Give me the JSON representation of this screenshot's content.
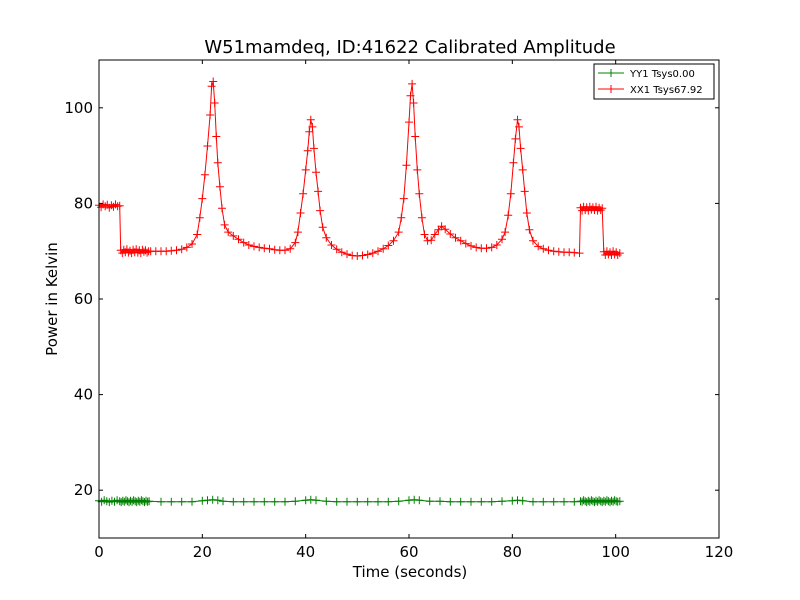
{
  "chart_data": {
    "type": "line",
    "title": "W51mamdeq, ID:41622 Calibrated Amplitude",
    "xlabel": "Time (seconds)",
    "ylabel": "Power in Kelvin",
    "xlim": [
      0,
      120
    ],
    "ylim": [
      10,
      110
    ],
    "xticks": [
      0,
      20,
      40,
      60,
      80,
      100,
      120
    ],
    "yticks": [
      20,
      40,
      60,
      80,
      100
    ],
    "grid": false,
    "legend_position": "top-right",
    "marker": "+",
    "series": [
      {
        "name": "YY1 Tsys0.00",
        "color": "#008000",
        "points": [
          [
            0.0,
            17.8
          ],
          [
            0.5,
            17.6
          ],
          [
            1.0,
            17.9
          ],
          [
            1.5,
            17.7
          ],
          [
            2.0,
            17.5
          ],
          [
            2.5,
            17.8
          ],
          [
            3.0,
            17.6
          ],
          [
            3.5,
            17.9
          ],
          [
            4.0,
            17.7
          ],
          [
            4.3,
            17.5
          ],
          [
            4.6,
            17.8
          ],
          [
            4.9,
            17.6
          ],
          [
            5.2,
            17.9
          ],
          [
            5.5,
            17.7
          ],
          [
            5.8,
            17.5
          ],
          [
            6.1,
            17.8
          ],
          [
            6.4,
            17.6
          ],
          [
            6.7,
            17.9
          ],
          [
            7.0,
            17.7
          ],
          [
            7.3,
            17.5
          ],
          [
            7.6,
            17.8
          ],
          [
            7.9,
            17.6
          ],
          [
            8.2,
            17.9
          ],
          [
            8.5,
            17.7
          ],
          [
            8.8,
            17.5
          ],
          [
            9.1,
            17.8
          ],
          [
            9.4,
            17.6
          ],
          [
            9.7,
            17.7
          ],
          [
            12,
            17.6
          ],
          [
            14,
            17.6
          ],
          [
            16,
            17.6
          ],
          [
            18,
            17.6
          ],
          [
            20,
            17.8
          ],
          [
            21,
            17.9
          ],
          [
            22,
            18.0
          ],
          [
            23,
            17.9
          ],
          [
            24,
            17.7
          ],
          [
            26,
            17.6
          ],
          [
            28,
            17.6
          ],
          [
            30,
            17.6
          ],
          [
            32,
            17.6
          ],
          [
            34,
            17.6
          ],
          [
            36,
            17.6
          ],
          [
            38,
            17.7
          ],
          [
            40,
            17.9
          ],
          [
            41,
            18.0
          ],
          [
            42,
            17.9
          ],
          [
            44,
            17.7
          ],
          [
            46,
            17.6
          ],
          [
            48,
            17.6
          ],
          [
            50,
            17.6
          ],
          [
            52,
            17.6
          ],
          [
            54,
            17.6
          ],
          [
            56,
            17.6
          ],
          [
            58,
            17.7
          ],
          [
            60,
            17.9
          ],
          [
            61,
            18.0
          ],
          [
            62,
            17.9
          ],
          [
            64,
            17.7
          ],
          [
            66,
            17.7
          ],
          [
            68,
            17.6
          ],
          [
            70,
            17.6
          ],
          [
            72,
            17.6
          ],
          [
            74,
            17.6
          ],
          [
            76,
            17.6
          ],
          [
            78,
            17.7
          ],
          [
            80,
            17.8
          ],
          [
            81,
            17.9
          ],
          [
            82,
            17.8
          ],
          [
            84,
            17.6
          ],
          [
            86,
            17.6
          ],
          [
            88,
            17.6
          ],
          [
            90,
            17.6
          ],
          [
            92,
            17.6
          ],
          [
            93.2,
            17.7
          ],
          [
            93.5,
            17.6
          ],
          [
            93.8,
            17.9
          ],
          [
            94.1,
            17.7
          ],
          [
            94.4,
            17.5
          ],
          [
            94.7,
            17.8
          ],
          [
            95.0,
            17.6
          ],
          [
            95.3,
            17.9
          ],
          [
            95.6,
            17.7
          ],
          [
            95.9,
            17.5
          ],
          [
            96.2,
            17.8
          ],
          [
            96.5,
            17.6
          ],
          [
            96.8,
            17.9
          ],
          [
            97.1,
            17.7
          ],
          [
            97.4,
            17.5
          ],
          [
            97.7,
            17.8
          ],
          [
            98.0,
            17.6
          ],
          [
            98.3,
            17.9
          ],
          [
            98.6,
            17.7
          ],
          [
            98.9,
            17.5
          ],
          [
            99.2,
            17.8
          ],
          [
            99.5,
            17.6
          ],
          [
            99.8,
            17.9
          ],
          [
            100.1,
            17.7
          ],
          [
            100.4,
            17.6
          ],
          [
            100.8,
            17.7
          ]
        ]
      },
      {
        "name": "XX1 Tsys67.92",
        "color": "#ff0000",
        "points": [
          [
            0.0,
            79.6
          ],
          [
            0.4,
            79.2
          ],
          [
            0.8,
            79.8
          ],
          [
            1.2,
            79.4
          ],
          [
            1.6,
            79.7
          ],
          [
            2.0,
            79.1
          ],
          [
            2.4,
            79.6
          ],
          [
            2.8,
            79.3
          ],
          [
            3.2,
            79.8
          ],
          [
            3.6,
            79.4
          ],
          [
            4.0,
            79.5
          ],
          [
            4.2,
            70.2
          ],
          [
            4.5,
            69.6
          ],
          [
            4.8,
            70.3
          ],
          [
            5.1,
            69.8
          ],
          [
            5.4,
            70.4
          ],
          [
            5.7,
            69.7
          ],
          [
            6.0,
            70.1
          ],
          [
            6.3,
            69.6
          ],
          [
            6.6,
            70.3
          ],
          [
            6.9,
            69.8
          ],
          [
            7.2,
            70.4
          ],
          [
            7.5,
            69.7
          ],
          [
            7.8,
            70.2
          ],
          [
            8.1,
            69.6
          ],
          [
            8.4,
            70.3
          ],
          [
            8.7,
            69.9
          ],
          [
            9.0,
            70.2
          ],
          [
            9.3,
            69.7
          ],
          [
            9.6,
            70.0
          ],
          [
            10,
            70.0
          ],
          [
            11,
            70.0
          ],
          [
            12,
            70.0
          ],
          [
            13,
            70.0
          ],
          [
            14,
            70.1
          ],
          [
            15,
            70.2
          ],
          [
            16,
            70.4
          ],
          [
            17,
            70.8
          ],
          [
            18,
            71.5
          ],
          [
            19,
            73.5
          ],
          [
            19.5,
            77
          ],
          [
            20,
            81
          ],
          [
            20.5,
            86
          ],
          [
            21,
            92
          ],
          [
            21.5,
            98.5
          ],
          [
            21.8,
            104.5
          ],
          [
            22.1,
            105.5
          ],
          [
            22.4,
            101
          ],
          [
            22.7,
            94
          ],
          [
            23,
            88.5
          ],
          [
            23.4,
            83.5
          ],
          [
            23.8,
            79
          ],
          [
            24.3,
            75.5
          ],
          [
            25,
            74
          ],
          [
            26,
            73.2
          ],
          [
            27,
            72.5
          ],
          [
            28,
            71.8
          ],
          [
            29,
            71.3
          ],
          [
            30,
            71.0
          ],
          [
            31,
            70.8
          ],
          [
            32,
            70.6
          ],
          [
            33,
            70.5
          ],
          [
            34,
            70.3
          ],
          [
            35,
            70.2
          ],
          [
            36,
            70.2
          ],
          [
            37,
            70.5
          ],
          [
            38,
            71.8
          ],
          [
            38.5,
            74
          ],
          [
            39,
            78
          ],
          [
            39.5,
            82
          ],
          [
            40,
            87
          ],
          [
            40.4,
            91
          ],
          [
            40.7,
            95
          ],
          [
            41,
            97.5
          ],
          [
            41.3,
            96
          ],
          [
            41.6,
            91.5
          ],
          [
            42,
            86.5
          ],
          [
            42.4,
            82.5
          ],
          [
            42.8,
            78.5
          ],
          [
            43.3,
            75
          ],
          [
            44,
            72.8
          ],
          [
            45,
            71.3
          ],
          [
            46,
            70.4
          ],
          [
            47,
            69.8
          ],
          [
            48,
            69.4
          ],
          [
            49,
            69.1
          ],
          [
            50,
            69.0
          ],
          [
            51,
            69.1
          ],
          [
            52,
            69.3
          ],
          [
            53,
            69.6
          ],
          [
            54,
            70.0
          ],
          [
            55,
            70.5
          ],
          [
            56,
            71.2
          ],
          [
            57,
            72.2
          ],
          [
            58,
            74.0
          ],
          [
            58.5,
            77
          ],
          [
            59,
            81
          ],
          [
            59.5,
            88
          ],
          [
            60,
            97
          ],
          [
            60.3,
            102.5
          ],
          [
            60.6,
            105
          ],
          [
            60.9,
            101
          ],
          [
            61.2,
            94
          ],
          [
            61.6,
            87
          ],
          [
            62,
            82
          ],
          [
            62.5,
            77
          ],
          [
            63,
            73.5
          ],
          [
            63.6,
            72.2
          ],
          [
            64.3,
            72.3
          ],
          [
            65,
            73.5
          ],
          [
            65.7,
            74.5
          ],
          [
            66.3,
            75.2
          ],
          [
            67,
            74.6
          ],
          [
            68,
            73.6
          ],
          [
            69,
            72.8
          ],
          [
            70,
            72.2
          ],
          [
            71,
            71.6
          ],
          [
            72,
            71.1
          ],
          [
            73,
            70.8
          ],
          [
            74,
            70.6
          ],
          [
            75,
            70.6
          ],
          [
            76,
            70.8
          ],
          [
            77,
            71.3
          ],
          [
            78,
            72.5
          ],
          [
            78.6,
            74
          ],
          [
            79.2,
            77.5
          ],
          [
            79.7,
            82
          ],
          [
            80.2,
            88.5
          ],
          [
            80.6,
            93.5
          ],
          [
            81,
            97.5
          ],
          [
            81.3,
            96
          ],
          [
            81.6,
            91.5
          ],
          [
            82,
            87
          ],
          [
            82.4,
            82.5
          ],
          [
            82.8,
            78
          ],
          [
            83.3,
            74.5
          ],
          [
            84,
            72.2
          ],
          [
            85,
            71
          ],
          [
            86,
            70.5
          ],
          [
            87,
            70.2
          ],
          [
            88,
            70.0
          ],
          [
            89,
            69.9
          ],
          [
            90,
            69.8
          ],
          [
            91,
            69.8
          ],
          [
            92,
            69.7
          ],
          [
            93.0,
            69.6
          ],
          [
            93.2,
            79.1
          ],
          [
            93.5,
            78.5
          ],
          [
            93.8,
            79.3
          ],
          [
            94.1,
            78.6
          ],
          [
            94.4,
            79.2
          ],
          [
            94.7,
            78.5
          ],
          [
            95.0,
            79.3
          ],
          [
            95.3,
            78.7
          ],
          [
            95.6,
            79.2
          ],
          [
            95.9,
            78.6
          ],
          [
            96.2,
            79.3
          ],
          [
            96.5,
            78.5
          ],
          [
            96.8,
            79.1
          ],
          [
            97.1,
            78.6
          ],
          [
            97.4,
            79.0
          ],
          [
            97.7,
            69.9
          ],
          [
            98.0,
            69.2
          ],
          [
            98.3,
            70.0
          ],
          [
            98.6,
            69.3
          ],
          [
            98.9,
            69.8
          ],
          [
            99.2,
            69.2
          ],
          [
            99.5,
            70.0
          ],
          [
            99.8,
            69.3
          ],
          [
            100.1,
            69.8
          ],
          [
            100.4,
            69.2
          ],
          [
            100.8,
            69.6
          ]
        ]
      }
    ]
  }
}
